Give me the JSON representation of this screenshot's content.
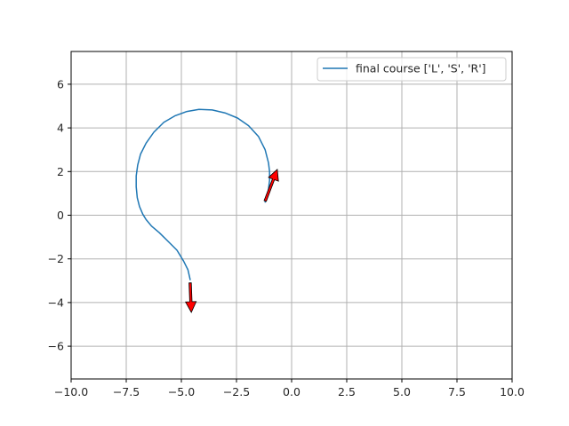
{
  "chart_data": {
    "type": "line",
    "title": "",
    "xlabel": "",
    "ylabel": "",
    "xlim": [
      -10,
      10
    ],
    "ylim": [
      -7.5,
      7.5
    ],
    "xticks": [
      -10,
      -7.5,
      -5,
      -2.5,
      0,
      2.5,
      5,
      7.5,
      10
    ],
    "xtick_labels": [
      "−10.0",
      "−7.5",
      "−5.0",
      "−2.5",
      "0.0",
      "2.5",
      "5.0",
      "7.5",
      "10.0"
    ],
    "yticks": [
      -6,
      -4,
      -2,
      0,
      2,
      4,
      6
    ],
    "ytick_labels": [
      "−6",
      "−4",
      "−2",
      "0",
      "2",
      "4",
      "6"
    ],
    "grid": true,
    "legend_position": "top-right",
    "series": [
      {
        "name": "final course ['L', 'S', 'R']",
        "color": "#1f77b4",
        "points": [
          [
            -4.6,
            -2.95
          ],
          [
            -4.7,
            -2.5
          ],
          [
            -4.9,
            -2.1
          ],
          [
            -5.2,
            -1.6
          ],
          [
            -5.6,
            -1.2
          ],
          [
            -6.0,
            -0.8
          ],
          [
            -6.35,
            -0.5
          ],
          [
            -6.6,
            -0.2
          ],
          [
            -6.75,
            0.05
          ],
          [
            -6.9,
            0.4
          ],
          [
            -7.0,
            0.8
          ],
          [
            -7.05,
            1.3
          ],
          [
            -7.05,
            1.8
          ],
          [
            -6.98,
            2.3
          ],
          [
            -6.85,
            2.8
          ],
          [
            -6.6,
            3.3
          ],
          [
            -6.25,
            3.8
          ],
          [
            -5.8,
            4.25
          ],
          [
            -5.3,
            4.55
          ],
          [
            -4.75,
            4.75
          ],
          [
            -4.2,
            4.85
          ],
          [
            -3.6,
            4.82
          ],
          [
            -3.0,
            4.68
          ],
          [
            -2.45,
            4.45
          ],
          [
            -1.95,
            4.1
          ],
          [
            -1.5,
            3.6
          ],
          [
            -1.2,
            3.0
          ],
          [
            -1.05,
            2.4
          ],
          [
            -1.0,
            2.0
          ],
          [
            -1.0,
            1.6
          ],
          [
            -1.05,
            1.2
          ],
          [
            -1.1,
            0.9
          ],
          [
            -1.2,
            0.6
          ]
        ]
      }
    ],
    "arrows": [
      {
        "x": -4.6,
        "y": -3.1,
        "dx": 0.05,
        "dy": -1.35,
        "color": "#ff0000"
      },
      {
        "x": -1.2,
        "y": 0.65,
        "dx": 0.55,
        "dy": 1.45,
        "color": "#ff0000"
      }
    ]
  }
}
